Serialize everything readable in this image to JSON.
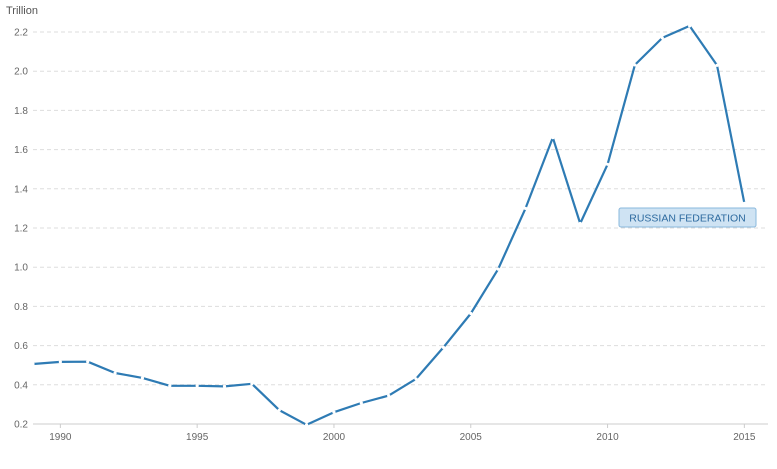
{
  "chart_data": {
    "type": "line",
    "unit_label": "Trillion",
    "x": [
      1989,
      1990,
      1991,
      1992,
      1993,
      1994,
      1995,
      1996,
      1997,
      1998,
      1999,
      2000,
      2001,
      2002,
      2003,
      2004,
      2005,
      2006,
      2007,
      2008,
      2009,
      2010,
      2011,
      2012,
      2013,
      2014,
      2015
    ],
    "series": [
      {
        "name": "RUSSIAN FEDERATION",
        "color": "#2e7bb4",
        "values": [
          0.506,
          0.517,
          0.518,
          0.46,
          0.435,
          0.395,
          0.395,
          0.392,
          0.405,
          0.271,
          0.196,
          0.26,
          0.307,
          0.345,
          0.43,
          0.591,
          0.764,
          0.99,
          1.3,
          1.661,
          1.223,
          1.525,
          2.032,
          2.17,
          2.231,
          2.03,
          1.326
        ]
      }
    ],
    "x_ticks": [
      "1990",
      "1995",
      "2000",
      "2005",
      "2010",
      "2015"
    ],
    "x_tick_values": [
      1990,
      1995,
      2000,
      2005,
      2010,
      2015
    ],
    "y_ticks": [
      "0.2",
      "0.4",
      "0.6",
      "0.8",
      "1.0",
      "1.2",
      "1.4",
      "1.6",
      "1.8",
      "2.0",
      "2.2"
    ],
    "y_tick_values": [
      0.2,
      0.4,
      0.6,
      0.8,
      1.0,
      1.2,
      1.4,
      1.6,
      1.8,
      2.0,
      2.2
    ],
    "xlim": [
      1989,
      2015.6
    ],
    "ylim": [
      0.2,
      2.28
    ],
    "grid": "horizontal dashed",
    "legend": "series label badge near line end"
  }
}
